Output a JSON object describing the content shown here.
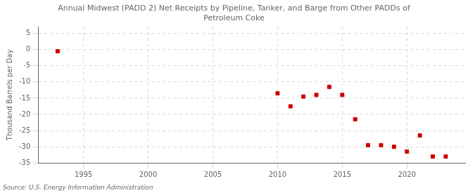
{
  "chart_data": {
    "type": "scatter",
    "title": "Annual Midwest (PADD 2) Net Receipts by Pipeline, Tanker, and Barge from Other PADDs of\nPetroleum Coke",
    "ylabel": "Thousand Barrels per Day",
    "source": "Source: U.S. Energy Information Administration",
    "x": [
      1993,
      2010,
      2011,
      2012,
      2013,
      2014,
      2015,
      2016,
      2017,
      2018,
      2019,
      2020,
      2021,
      2022,
      2023
    ],
    "values": [
      -0.5,
      -13.5,
      -17.5,
      -14.5,
      -14.0,
      -11.5,
      -14.0,
      -21.5,
      -29.5,
      -29.5,
      -30.0,
      -31.5,
      -26.5,
      -33.0,
      -33.0
    ],
    "color": "#cc0000",
    "marker": "square",
    "xlim": [
      1991.5,
      2024.5
    ],
    "xticks": [
      1995,
      2000,
      2005,
      2010,
      2015,
      2020
    ],
    "ylim": [
      -35,
      7
    ],
    "yticks": [
      5,
      0,
      -5,
      -10,
      -15,
      -20,
      -25,
      -30,
      -35
    ],
    "grid": true
  }
}
